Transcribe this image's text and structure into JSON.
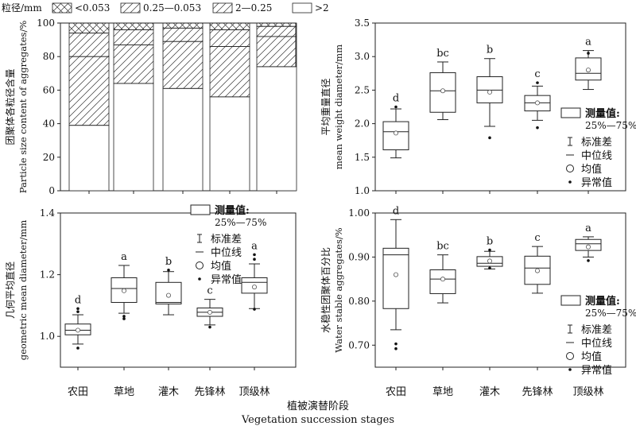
{
  "figure": {
    "xlabel_cn": "植被演替阶段",
    "xlabel_en": "Vegetation succession stages",
    "categories": [
      "农田",
      "草地",
      "灌木",
      "先锋林",
      "顶级林"
    ]
  },
  "chart_data": [
    {
      "id": "stack",
      "type": "bar",
      "stacked": true,
      "categories": [
        "农田",
        "草地",
        "灌木",
        "先锋林",
        "顶级林"
      ],
      "legend_title": "粒径/mm",
      "series": [
        {
          "name": ">2",
          "values": [
            39,
            64,
            61,
            56,
            74
          ]
        },
        {
          "name": "2—0.25",
          "values": [
            41,
            23,
            28,
            30,
            18
          ]
        },
        {
          "name": "0.25—0.053",
          "values": [
            14,
            9,
            8,
            10,
            6
          ]
        },
        {
          "name": "<0.053",
          "values": [
            6,
            4,
            3,
            4,
            2
          ]
        }
      ],
      "ylabel_cn": "团聚体各粒径含量",
      "ylabel_en": "Particle size content of aggregates/%",
      "ylim": [
        0,
        100
      ],
      "yticks": [
        0,
        20,
        40,
        60,
        80,
        100
      ]
    },
    {
      "id": "mwd",
      "type": "box",
      "categories": [
        "农田",
        "草地",
        "灌木",
        "先锋林",
        "顶级林"
      ],
      "ylabel_cn": "平均重量直径",
      "ylabel_en": "mean weight diameter/mm",
      "ylim": [
        1.0,
        3.5
      ],
      "yticks": [
        1.0,
        1.5,
        2.0,
        2.5,
        3.0,
        3.5
      ],
      "boxes": [
        {
          "q1": 1.61,
          "q3": 2.03,
          "median": 1.88,
          "mean": 1.86,
          "whisker_low": 1.49,
          "whisker_high": 2.22,
          "outliers": [
            2.25
          ],
          "letter": "d"
        },
        {
          "q1": 2.17,
          "q3": 2.76,
          "median": 2.49,
          "mean": 2.49,
          "whisker_low": 2.06,
          "whisker_high": 2.92,
          "outliers": [],
          "letter": "bc"
        },
        {
          "q1": 2.31,
          "q3": 2.7,
          "median": 2.5,
          "mean": 2.47,
          "whisker_low": 1.96,
          "whisker_high": 2.97,
          "outliers": [
            1.79
          ],
          "letter": "b"
        },
        {
          "q1": 2.19,
          "q3": 2.42,
          "median": 2.31,
          "mean": 2.31,
          "whisker_low": 2.05,
          "whisker_high": 2.56,
          "outliers": [
            2.61,
            1.94
          ],
          "letter": "c"
        },
        {
          "q1": 2.65,
          "q3": 2.98,
          "median": 2.75,
          "mean": 2.8,
          "whisker_low": 2.51,
          "whisker_high": 3.09,
          "outliers": [
            3.05
          ],
          "letter": "a"
        }
      ]
    },
    {
      "id": "gmd",
      "type": "box",
      "categories": [
        "农田",
        "草地",
        "灌木",
        "先锋林",
        "顶级林"
      ],
      "ylabel_cn": "几何平均直径",
      "ylabel_en": "geometric mean diameter/mm",
      "ylim": [
        0.9,
        1.4
      ],
      "yticks": [
        1.0,
        1.2,
        1.4
      ],
      "boxes": [
        {
          "q1": 1.005,
          "q3": 1.04,
          "median": 1.02,
          "mean": 1.02,
          "whisker_low": 0.975,
          "whisker_high": 1.07,
          "outliers": [
            1.08,
            1.09,
            0.962
          ],
          "letter": "d"
        },
        {
          "q1": 1.11,
          "q3": 1.19,
          "median": 1.155,
          "mean": 1.148,
          "whisker_low": 1.075,
          "whisker_high": 1.23,
          "outliers": [
            1.065,
            1.057
          ],
          "letter": "a"
        },
        {
          "q1": 1.105,
          "q3": 1.175,
          "median": 1.11,
          "mean": 1.133,
          "whisker_low": 1.07,
          "whisker_high": 1.21,
          "outliers": [
            1.215
          ],
          "letter": "b"
        },
        {
          "q1": 1.065,
          "q3": 1.092,
          "median": 1.078,
          "mean": 1.078,
          "whisker_low": 1.037,
          "whisker_high": 1.12,
          "outliers": [
            1.03
          ],
          "letter": "c"
        },
        {
          "q1": 1.14,
          "q3": 1.19,
          "median": 1.175,
          "mean": 1.16,
          "whisker_low": 1.09,
          "whisker_high": 1.235,
          "outliers": [
            1.25,
            1.265,
            1.088
          ],
          "letter": "a"
        }
      ]
    },
    {
      "id": "wsa",
      "type": "box",
      "categories": [
        "农田",
        "草地",
        "灌木",
        "先锋林",
        "顶级林"
      ],
      "ylabel_cn": "水稳性团聚体百分比",
      "ylabel_en": "Water stable aggregates/%",
      "ylim": [
        0.65,
        1.0
      ],
      "yticks": [
        0.7,
        0.8,
        0.9,
        1.0
      ],
      "boxes": [
        {
          "q1": 0.783,
          "q3": 0.92,
          "median": 0.905,
          "mean": 0.86,
          "whisker_low": 0.735,
          "whisker_high": 0.985,
          "outliers": [
            0.703,
            0.692
          ],
          "letter": "d"
        },
        {
          "q1": 0.817,
          "q3": 0.871,
          "median": 0.85,
          "mean": 0.85,
          "whisker_low": 0.796,
          "whisker_high": 0.905,
          "outliers": [],
          "letter": "bc"
        },
        {
          "q1": 0.879,
          "q3": 0.901,
          "median": 0.886,
          "mean": 0.891,
          "whisker_low": 0.873,
          "whisker_high": 0.913,
          "outliers": [
            0.916,
            0.875
          ],
          "letter": "b"
        },
        {
          "q1": 0.838,
          "q3": 0.902,
          "median": 0.875,
          "mean": 0.869,
          "whisker_low": 0.818,
          "whisker_high": 0.924,
          "outliers": [],
          "letter": "c"
        },
        {
          "q1": 0.915,
          "q3": 0.94,
          "median": 0.93,
          "mean": 0.923,
          "whisker_low": 0.9,
          "whisker_high": 0.946,
          "outliers": [
            0.892
          ],
          "letter": "a"
        }
      ]
    }
  ],
  "box_legend": {
    "box_label": "测量值:",
    "box_range": "25%—75%",
    "sd_label": "标准差",
    "median_label": "中位线",
    "mean_label": "均值",
    "outlier_label": "异常值"
  }
}
